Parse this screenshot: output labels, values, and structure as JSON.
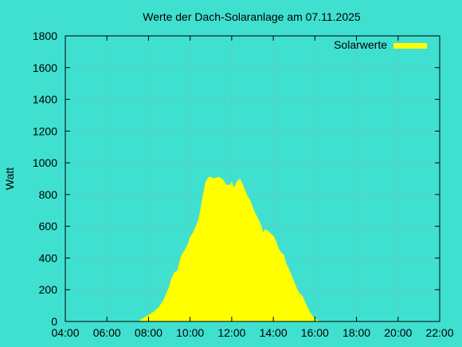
{
  "chart_data": {
    "type": "area",
    "title": "Werte der Dach-Solaranlage am 07.11.2025",
    "xlabel": "",
    "ylabel": "Watt",
    "x_unit": "time of day (hours)",
    "xlim": [
      4,
      22
    ],
    "ylim": [
      0,
      1800
    ],
    "x_ticks": [
      4,
      6,
      8,
      10,
      12,
      14,
      16,
      18,
      20,
      22
    ],
    "x_tick_labels": [
      "04:00",
      "06:00",
      "08:00",
      "10:00",
      "12:00",
      "14:00",
      "16:00",
      "18:00",
      "20:00",
      "22:00"
    ],
    "y_ticks": [
      0,
      200,
      400,
      600,
      800,
      1000,
      1200,
      1400,
      1600,
      1800
    ],
    "y_tick_labels": [
      "0",
      "200",
      "400",
      "600",
      "800",
      "1000",
      "1200",
      "1400",
      "1600",
      "1800"
    ],
    "grid": true,
    "legend": "top-right",
    "series": [
      {
        "name": "Solarwerte",
        "color": "#ffff00",
        "x": [
          7.6,
          7.75,
          8.0,
          8.25,
          8.5,
          8.75,
          9.0,
          9.1,
          9.25,
          9.4,
          9.5,
          9.6,
          9.75,
          9.9,
          10.0,
          10.15,
          10.25,
          10.4,
          10.5,
          10.6,
          10.75,
          10.9,
          11.0,
          11.1,
          11.25,
          11.4,
          11.5,
          11.6,
          11.75,
          11.9,
          12.0,
          12.1,
          12.25,
          12.4,
          12.5,
          12.6,
          12.75,
          12.9,
          13.0,
          13.1,
          13.25,
          13.4,
          13.5,
          13.6,
          13.75,
          13.9,
          14.0,
          14.15,
          14.25,
          14.4,
          14.5,
          14.6,
          14.75,
          14.9,
          15.0,
          15.15,
          15.25,
          15.4,
          15.5,
          15.6,
          15.75,
          15.9,
          16.0,
          16.15,
          16.3
        ],
        "y": [
          10,
          20,
          40,
          60,
          90,
          140,
          220,
          270,
          310,
          320,
          380,
          420,
          450,
          490,
          530,
          560,
          590,
          640,
          700,
          780,
          880,
          910,
          910,
          900,
          905,
          910,
          900,
          890,
          860,
          860,
          880,
          840,
          880,
          900,
          870,
          840,
          790,
          760,
          720,
          690,
          650,
          610,
          560,
          580,
          570,
          550,
          540,
          500,
          460,
          430,
          420,
          370,
          330,
          280,
          250,
          200,
          180,
          160,
          130,
          100,
          60,
          30,
          15,
          5,
          0
        ]
      }
    ]
  }
}
